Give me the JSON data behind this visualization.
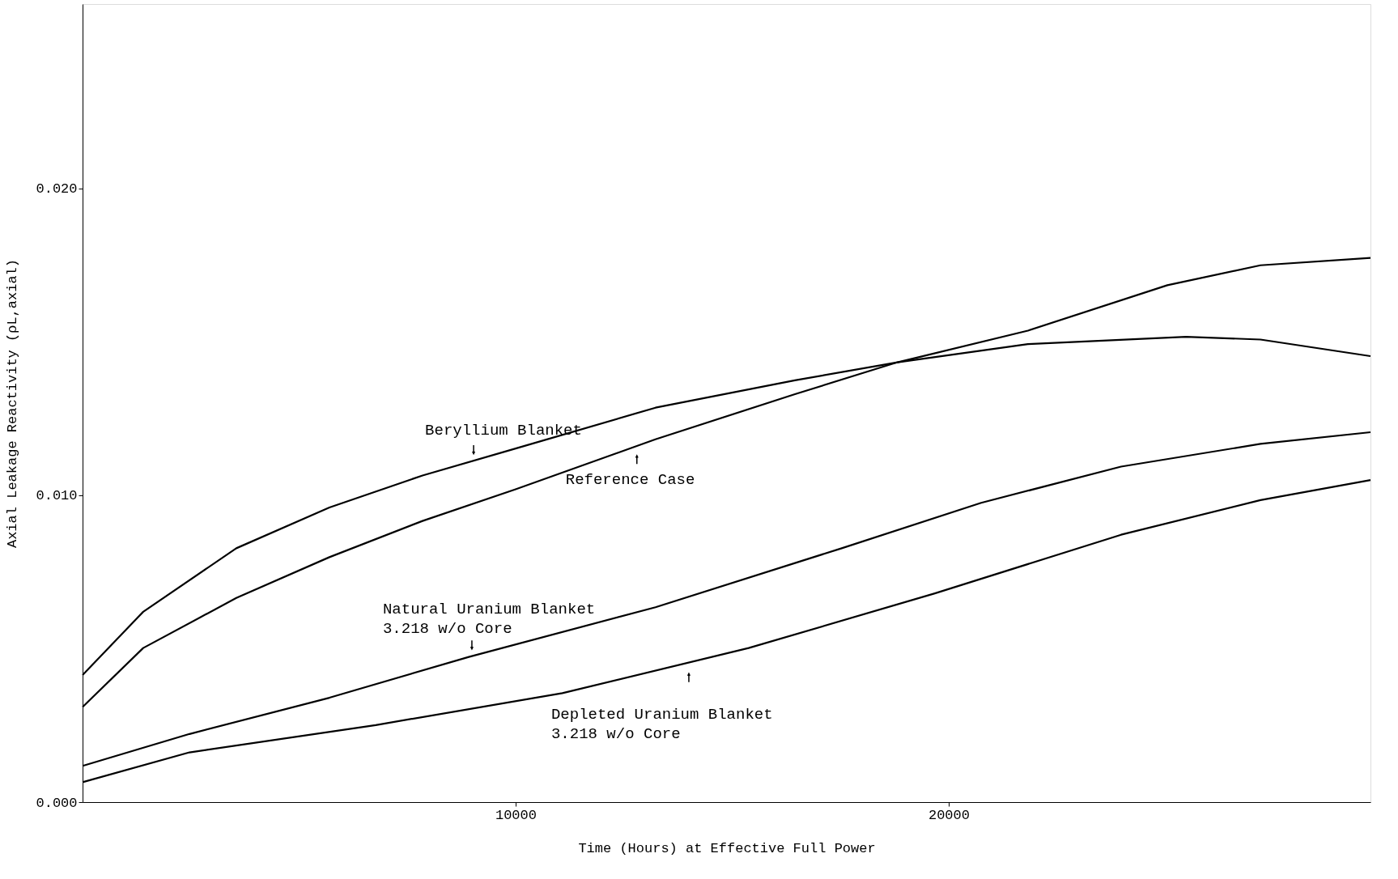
{
  "chart_data": {
    "type": "line",
    "xlabel": "Time (Hours) at Effective Full Power",
    "ylabel": "Axial Leakage Reactivity (ρL,axial)",
    "xlim": [
      0,
      29740
    ],
    "ylim": [
      0,
      0.026
    ],
    "xticks": [
      10000,
      20000
    ],
    "yticks": [
      {
        "value": 0,
        "label": "0.000"
      },
      {
        "value": 0.01,
        "label": "0.010"
      },
      {
        "value": 0.02,
        "label": "0.020"
      }
    ],
    "grid": false,
    "legend": false,
    "marker": "none",
    "line_style": "solid",
    "series": [
      {
        "color": "#000000",
        "x": [
          0,
          1400,
          3550,
          5700,
          7850,
          10000,
          13230,
          16450,
          18820,
          21830,
          25480,
          27200,
          29740
        ],
        "values": [
          0.00414,
          0.0062,
          0.00827,
          0.0096,
          0.01064,
          0.01152,
          0.01285,
          0.01374,
          0.01433,
          0.01492,
          0.01516,
          0.01507,
          0.01453
        ]
      },
      {
        "color": "#000000",
        "x": [
          0,
          1400,
          3550,
          5700,
          7850,
          10000,
          13230,
          16450,
          18820,
          21830,
          25050,
          27200,
          29740
        ],
        "values": [
          0.0031,
          0.00502,
          0.00665,
          0.00798,
          0.00916,
          0.01019,
          0.01182,
          0.01329,
          0.01433,
          0.01536,
          0.01684,
          0.01749,
          0.01773
        ]
      },
      {
        "color": "#000000",
        "x": [
          0,
          2470,
          5700,
          8920,
          13230,
          17530,
          20750,
          23980,
          27200,
          29740
        ],
        "values": [
          0.00118,
          0.00222,
          0.0034,
          0.00473,
          0.00635,
          0.00827,
          0.00975,
          0.01093,
          0.01167,
          0.01205
        ]
      },
      {
        "color": "#000000",
        "x": [
          0,
          2470,
          6770,
          11080,
          15380,
          19680,
          23980,
          27200,
          29740
        ],
        "values": [
          0.00065,
          0.00162,
          0.00251,
          0.00355,
          0.00502,
          0.0068,
          0.00871,
          0.00984,
          0.01049
        ]
      }
    ],
    "annotations": [
      {
        "text": "Beryllium Blanket",
        "x": 9030,
        "y": 0.01112
      },
      {
        "text": "Reference Case",
        "x": 12800,
        "y": 0.01152
      },
      {
        "text": "Natural Uranium Blanket\n3.218 w/o Core",
        "x": 8990,
        "y": 0.00476
      },
      {
        "text": "Depleted Uranium Blanket\n3.218 w/o Core",
        "x": 14000,
        "y": 0.00455
      }
    ]
  }
}
